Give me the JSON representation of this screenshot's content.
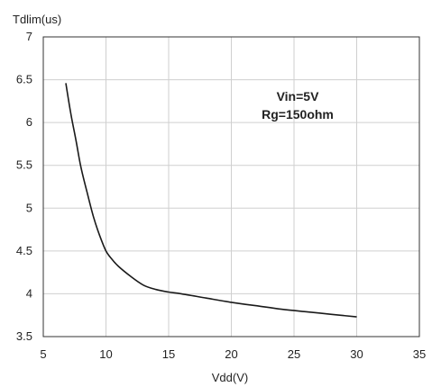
{
  "chart_data": {
    "type": "line",
    "title": "",
    "xlabel": "Vdd(V)",
    "ylabel": "Tdlim(us)",
    "xlim": [
      5,
      35
    ],
    "ylim": [
      3.5,
      7
    ],
    "xticks": [
      "5",
      "10",
      "15",
      "20",
      "25",
      "30",
      "35"
    ],
    "yticks": [
      "3.5",
      "4",
      "4.5",
      "5",
      "5.5",
      "6",
      "6.5",
      "7"
    ],
    "grid": true,
    "annotations": [
      "Vin=5V",
      "Rg=150ohm"
    ],
    "series": [
      {
        "x": [
          6.8,
          7.2,
          7.6,
          8.0,
          8.5,
          9.0,
          9.5,
          10.0,
          10.5,
          11.0,
          12.0,
          13.0,
          14.0,
          15.0,
          16.0,
          18.0,
          20.0,
          22.0,
          24.0,
          26.0,
          28.0,
          30.0
        ],
        "y": [
          6.46,
          6.1,
          5.8,
          5.48,
          5.18,
          4.9,
          4.68,
          4.5,
          4.4,
          4.32,
          4.2,
          4.1,
          4.05,
          4.02,
          4.0,
          3.95,
          3.9,
          3.86,
          3.82,
          3.79,
          3.76,
          3.73
        ]
      }
    ],
    "line_color": "#1a1a1a",
    "grid_color": "#cfcfcf"
  }
}
